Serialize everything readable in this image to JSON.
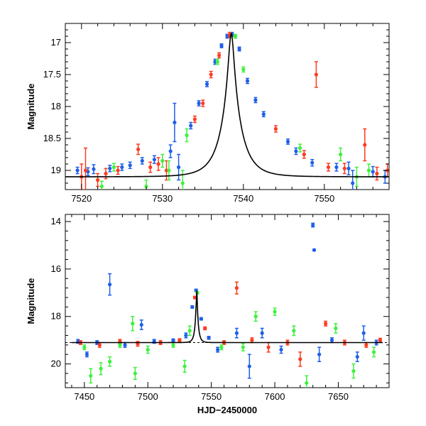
{
  "chart_data": [
    {
      "type": "scatter",
      "title": "",
      "xlabel": "",
      "ylabel": "Magnitude",
      "xlim": [
        7518,
        7558
      ],
      "ylim": [
        19.3,
        16.7
      ],
      "y_inverted": true,
      "xticks": [
        7520,
        7530,
        7540,
        7550
      ],
      "yticks": [
        17,
        17.5,
        18,
        18.5,
        19
      ],
      "grid": false,
      "legend": "none",
      "model_curve": {
        "color": "#000000",
        "t0": 7538.5,
        "tE": 2.4,
        "baseline": 19.1,
        "peak": 16.85,
        "x_range": [
          7518,
          7558
        ]
      },
      "series": [
        {
          "color": "#1f5fe8",
          "points": [
            {
              "x": 7519.5,
              "y": 19.0,
              "err": 0.05
            },
            {
              "x": 7520.8,
              "y": 19.02,
              "err": 0.06
            },
            {
              "x": 7521.5,
              "y": 18.98,
              "err": 0.07
            },
            {
              "x": 7523.5,
              "y": 18.97,
              "err": 0.05
            },
            {
              "x": 7525.0,
              "y": 18.95,
              "err": 0.05
            },
            {
              "x": 7526.0,
              "y": 18.92,
              "err": 0.05
            },
            {
              "x": 7527.5,
              "y": 18.85,
              "err": 0.05
            },
            {
              "x": 7529.0,
              "y": 18.83,
              "err": 0.06
            },
            {
              "x": 7531.0,
              "y": 18.7,
              "err": 0.1
            },
            {
              "x": 7531.5,
              "y": 18.25,
              "err": 0.3
            },
            {
              "x": 7532.0,
              "y": 18.95,
              "err": 0.2
            },
            {
              "x": 7533.5,
              "y": 18.3,
              "err": 0.05
            },
            {
              "x": 7534.5,
              "y": 17.95,
              "err": 0.04
            },
            {
              "x": 7535.5,
              "y": 17.65,
              "err": 0.04
            },
            {
              "x": 7536.5,
              "y": 17.3,
              "err": 0.04
            },
            {
              "x": 7537.3,
              "y": 17.05,
              "err": 0.03
            },
            {
              "x": 7538.0,
              "y": 16.9,
              "err": 0.03
            },
            {
              "x": 7538.6,
              "y": 16.87,
              "err": 0.03
            },
            {
              "x": 7539.5,
              "y": 17.1,
              "err": 0.03
            },
            {
              "x": 7540.5,
              "y": 17.6,
              "err": 0.04
            },
            {
              "x": 7541.5,
              "y": 17.9,
              "err": 0.04
            },
            {
              "x": 7542.5,
              "y": 18.12,
              "err": 0.04
            },
            {
              "x": 7545.5,
              "y": 18.55,
              "err": 0.04
            },
            {
              "x": 7546.5,
              "y": 18.7,
              "err": 0.05
            },
            {
              "x": 7548.5,
              "y": 18.88,
              "err": 0.05
            },
            {
              "x": 7551.5,
              "y": 18.95,
              "err": 0.06
            },
            {
              "x": 7553.0,
              "y": 18.97,
              "err": 0.1
            },
            {
              "x": 7553.5,
              "y": 19.2,
              "err": 0.2
            },
            {
              "x": 7556.0,
              "y": 19.02,
              "err": 0.08
            },
            {
              "x": 7557.5,
              "y": 19.1,
              "err": 0.1
            }
          ]
        },
        {
          "color": "#ff3b1f",
          "points": [
            {
              "x": 7520.0,
              "y": 19.1,
              "err": 0.2
            },
            {
              "x": 7520.5,
              "y": 19.0,
              "err": 0.35
            },
            {
              "x": 7522.0,
              "y": 19.15,
              "err": 0.1
            },
            {
              "x": 7523.0,
              "y": 19.05,
              "err": 0.08
            },
            {
              "x": 7524.5,
              "y": 19.0,
              "err": 0.06
            },
            {
              "x": 7527.0,
              "y": 18.67,
              "err": 0.08
            },
            {
              "x": 7528.5,
              "y": 18.95,
              "err": 0.08
            },
            {
              "x": 7529.5,
              "y": 18.9,
              "err": 0.1
            },
            {
              "x": 7530.5,
              "y": 19.0,
              "err": 0.15
            },
            {
              "x": 7534.0,
              "y": 18.2,
              "err": 0.05
            },
            {
              "x": 7535.0,
              "y": 17.95,
              "err": 0.05
            },
            {
              "x": 7536.0,
              "y": 17.5,
              "err": 0.05
            },
            {
              "x": 7537.0,
              "y": 17.2,
              "err": 0.04
            },
            {
              "x": 7538.3,
              "y": 16.88,
              "err": 0.04
            },
            {
              "x": 7544.0,
              "y": 18.35,
              "err": 0.05
            },
            {
              "x": 7547.5,
              "y": 18.75,
              "err": 0.06
            },
            {
              "x": 7549.0,
              "y": 17.5,
              "err": 0.2
            },
            {
              "x": 7550.5,
              "y": 18.95,
              "err": 0.06
            },
            {
              "x": 7552.5,
              "y": 18.97,
              "err": 0.08
            },
            {
              "x": 7555.0,
              "y": 18.6,
              "err": 0.25
            },
            {
              "x": 7556.5,
              "y": 19.05,
              "err": 0.1
            },
            {
              "x": 7557.8,
              "y": 19.0,
              "err": 0.1
            }
          ]
        },
        {
          "color": "#3ef03e",
          "points": [
            {
              "x": 7522.5,
              "y": 19.25,
              "err": 0.08
            },
            {
              "x": 7524.0,
              "y": 18.95,
              "err": 0.06
            },
            {
              "x": 7528.0,
              "y": 19.25,
              "err": 0.1
            },
            {
              "x": 7530.0,
              "y": 18.85,
              "err": 0.1
            },
            {
              "x": 7530.8,
              "y": 19.0,
              "err": 0.15
            },
            {
              "x": 7532.5,
              "y": 19.2,
              "err": 0.2
            },
            {
              "x": 7533.0,
              "y": 18.45,
              "err": 0.1
            },
            {
              "x": 7536.8,
              "y": 17.3,
              "err": 0.04
            },
            {
              "x": 7539.0,
              "y": 16.9,
              "err": 0.03
            },
            {
              "x": 7540.0,
              "y": 17.42,
              "err": 0.04
            },
            {
              "x": 7547.0,
              "y": 18.65,
              "err": 0.06
            },
            {
              "x": 7552.0,
              "y": 18.75,
              "err": 0.1
            },
            {
              "x": 7554.0,
              "y": 19.1,
              "err": 0.15
            },
            {
              "x": 7555.5,
              "y": 19.0,
              "err": 0.1
            }
          ]
        }
      ]
    },
    {
      "type": "scatter",
      "title": "",
      "xlabel": "HJD−2450000",
      "ylabel": "Magnitude",
      "xlim": [
        7435,
        7690
      ],
      "ylim": [
        21.0,
        13.7
      ],
      "y_inverted": true,
      "xticks": [
        7450,
        7500,
        7550,
        7600,
        7650
      ],
      "yticks": [
        14,
        16,
        18,
        20
      ],
      "grid": false,
      "legend": "none",
      "baseline": 19.1,
      "model_curve": {
        "color": "#000000",
        "t0": 7538.5,
        "tE": 2.4,
        "baseline": 19.1,
        "peak": 16.85,
        "x_range": [
          7440,
          7685
        ]
      },
      "series": [
        {
          "color": "#1f5fe8",
          "points": [
            {
              "x": 7445,
              "y": 19.05,
              "err": 0.08
            },
            {
              "x": 7452,
              "y": 19.6,
              "err": 0.1
            },
            {
              "x": 7460,
              "y": 19.1,
              "err": 0.08
            },
            {
              "x": 7470,
              "y": 16.65,
              "err": 0.45
            },
            {
              "x": 7482,
              "y": 19.2,
              "err": 0.1
            },
            {
              "x": 7495,
              "y": 18.35,
              "err": 0.2
            },
            {
              "x": 7505,
              "y": 19.05,
              "err": 0.08
            },
            {
              "x": 7520,
              "y": 19.0,
              "err": 0.05
            },
            {
              "x": 7530,
              "y": 18.8,
              "err": 0.1
            },
            {
              "x": 7535,
              "y": 17.6,
              "err": 0.05
            },
            {
              "x": 7538,
              "y": 16.9,
              "err": 0.05
            },
            {
              "x": 7542,
              "y": 18.1,
              "err": 0.05
            },
            {
              "x": 7548,
              "y": 18.9,
              "err": 0.06
            },
            {
              "x": 7555,
              "y": 19.4,
              "err": 0.1
            },
            {
              "x": 7570,
              "y": 18.7,
              "err": 0.2
            },
            {
              "x": 7580,
              "y": 20.1,
              "err": 0.5
            },
            {
              "x": 7590,
              "y": 18.7,
              "err": 0.2
            },
            {
              "x": 7605,
              "y": 19.4,
              "err": 0.15
            },
            {
              "x": 7630,
              "y": 14.15,
              "err": 0.08
            },
            {
              "x": 7631,
              "y": 15.2,
              "err": 0.03
            },
            {
              "x": 7635,
              "y": 19.6,
              "err": 0.3
            },
            {
              "x": 7645,
              "y": 19.0,
              "err": 0.1
            },
            {
              "x": 7665,
              "y": 19.7,
              "err": 0.2
            },
            {
              "x": 7670,
              "y": 18.7,
              "err": 0.3
            },
            {
              "x": 7680,
              "y": 19.1,
              "err": 0.1
            }
          ]
        },
        {
          "color": "#ff3b1f",
          "points": [
            {
              "x": 7447,
              "y": 19.1,
              "err": 0.08
            },
            {
              "x": 7462,
              "y": 19.2,
              "err": 0.1
            },
            {
              "x": 7478,
              "y": 19.05,
              "err": 0.08
            },
            {
              "x": 7492,
              "y": 19.15,
              "err": 0.1
            },
            {
              "x": 7510,
              "y": 19.1,
              "err": 0.08
            },
            {
              "x": 7525,
              "y": 19.0,
              "err": 0.06
            },
            {
              "x": 7537,
              "y": 17.2,
              "err": 0.05
            },
            {
              "x": 7545,
              "y": 18.5,
              "err": 0.06
            },
            {
              "x": 7560,
              "y": 19.1,
              "err": 0.08
            },
            {
              "x": 7570,
              "y": 16.8,
              "err": 0.25
            },
            {
              "x": 7582,
              "y": 19.0,
              "err": 0.1
            },
            {
              "x": 7595,
              "y": 19.3,
              "err": 0.2
            },
            {
              "x": 7610,
              "y": 19.1,
              "err": 0.1
            },
            {
              "x": 7620,
              "y": 19.8,
              "err": 0.3
            },
            {
              "x": 7640,
              "y": 18.3,
              "err": 0.1
            },
            {
              "x": 7655,
              "y": 19.1,
              "err": 0.1
            },
            {
              "x": 7672,
              "y": 19.2,
              "err": 0.1
            },
            {
              "x": 7683,
              "y": 19.0,
              "err": 0.08
            }
          ]
        },
        {
          "color": "#3ef03e",
          "points": [
            {
              "x": 7450,
              "y": 19.3,
              "err": 0.1
            },
            {
              "x": 7455,
              "y": 20.5,
              "err": 0.3
            },
            {
              "x": 7463,
              "y": 20.2,
              "err": 0.25
            },
            {
              "x": 7470,
              "y": 19.9,
              "err": 0.2
            },
            {
              "x": 7478,
              "y": 19.2,
              "err": 0.1
            },
            {
              "x": 7488,
              "y": 18.3,
              "err": 0.3
            },
            {
              "x": 7490,
              "y": 20.4,
              "err": 0.25
            },
            {
              "x": 7500,
              "y": 19.4,
              "err": 0.15
            },
            {
              "x": 7520,
              "y": 19.2,
              "err": 0.1
            },
            {
              "x": 7529,
              "y": 20.1,
              "err": 0.25
            },
            {
              "x": 7533,
              "y": 18.6,
              "err": 0.2
            },
            {
              "x": 7539,
              "y": 17.0,
              "err": 0.05
            },
            {
              "x": 7558,
              "y": 19.3,
              "err": 0.1
            },
            {
              "x": 7575,
              "y": 19.3,
              "err": 0.15
            },
            {
              "x": 7585,
              "y": 18.0,
              "err": 0.2
            },
            {
              "x": 7600,
              "y": 17.8,
              "err": 0.15
            },
            {
              "x": 7615,
              "y": 18.6,
              "err": 0.2
            },
            {
              "x": 7625,
              "y": 20.8,
              "err": 0.3
            },
            {
              "x": 7648,
              "y": 18.5,
              "err": 0.2
            },
            {
              "x": 7662,
              "y": 20.3,
              "err": 0.3
            },
            {
              "x": 7678,
              "y": 19.5,
              "err": 0.2
            }
          ]
        }
      ]
    }
  ]
}
